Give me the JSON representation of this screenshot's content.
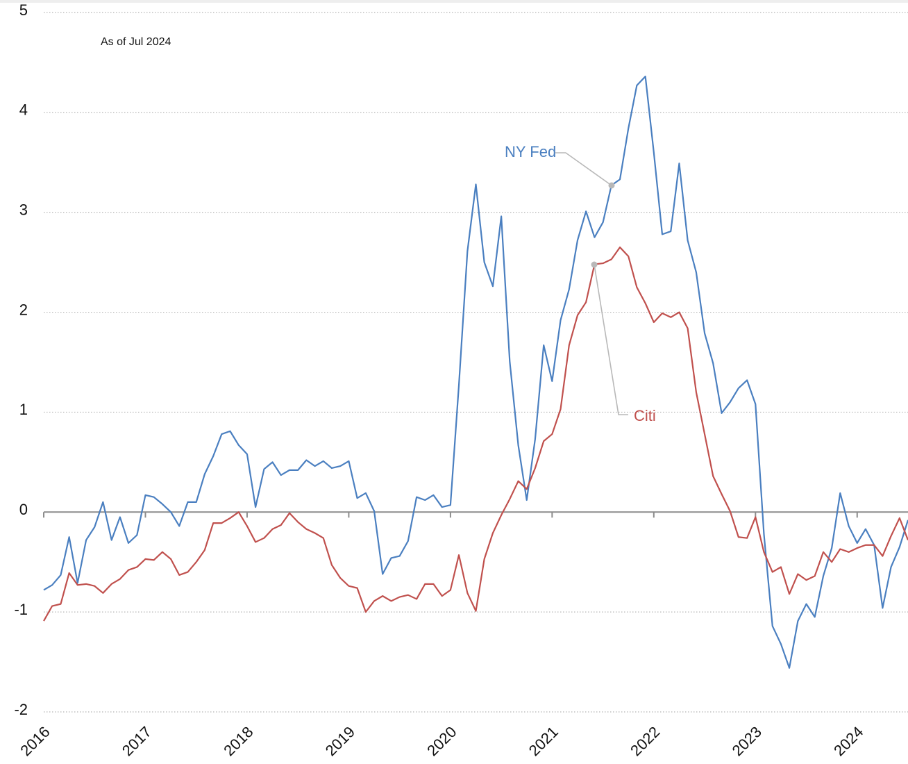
{
  "chart_data": {
    "type": "line",
    "note": "As of Jul 2024",
    "x": [
      2016,
      2016.083,
      2016.167,
      2016.25,
      2016.333,
      2016.417,
      2016.5,
      2016.583,
      2016.667,
      2016.75,
      2016.833,
      2016.917,
      2017,
      2017.083,
      2017.167,
      2017.25,
      2017.333,
      2017.417,
      2017.5,
      2017.583,
      2017.667,
      2017.75,
      2017.833,
      2017.917,
      2018,
      2018.083,
      2018.167,
      2018.25,
      2018.333,
      2018.417,
      2018.5,
      2018.583,
      2018.667,
      2018.75,
      2018.833,
      2018.917,
      2019,
      2019.083,
      2019.167,
      2019.25,
      2019.333,
      2019.417,
      2019.5,
      2019.583,
      2019.667,
      2019.75,
      2019.833,
      2019.917,
      2020,
      2020.083,
      2020.167,
      2020.25,
      2020.333,
      2020.417,
      2020.5,
      2020.583,
      2020.667,
      2020.75,
      2020.833,
      2020.917,
      2021,
      2021.083,
      2021.167,
      2021.25,
      2021.333,
      2021.417,
      2021.5,
      2021.583,
      2021.667,
      2021.75,
      2021.833,
      2021.917,
      2022,
      2022.083,
      2022.167,
      2022.25,
      2022.333,
      2022.417,
      2022.5,
      2022.583,
      2022.667,
      2022.75,
      2022.833,
      2022.917,
      2023,
      2023.083,
      2023.167,
      2023.25,
      2023.333,
      2023.417,
      2023.5,
      2023.583,
      2023.667,
      2023.75,
      2023.833,
      2023.917,
      2024,
      2024.083,
      2024.167,
      2024.25,
      2024.333,
      2024.417,
      2024.5
    ],
    "series": [
      {
        "name": "NY Fed",
        "color": "#4a7fc0",
        "values": [
          -0.78,
          -0.73,
          -0.63,
          -0.25,
          -0.71,
          -0.28,
          -0.15,
          0.1,
          -0.28,
          -0.05,
          -0.31,
          -0.23,
          0.17,
          0.15,
          0.08,
          0.0,
          -0.14,
          0.1,
          0.1,
          0.38,
          0.56,
          0.78,
          0.81,
          0.67,
          0.58,
          0.05,
          0.43,
          0.5,
          0.37,
          0.42,
          0.42,
          0.52,
          0.46,
          0.51,
          0.44,
          0.46,
          0.51,
          0.14,
          0.19,
          0.01,
          -0.62,
          -0.46,
          -0.44,
          -0.29,
          0.15,
          0.12,
          0.17,
          0.05,
          0.07,
          1.27,
          2.61,
          3.28,
          2.5,
          2.26,
          2.96,
          1.51,
          0.67,
          0.12,
          0.73,
          1.67,
          1.31,
          1.92,
          2.23,
          2.72,
          3.01,
          2.75,
          2.9,
          3.27,
          3.33,
          3.84,
          4.27,
          4.36,
          3.6,
          2.78,
          2.81,
          3.49,
          2.72,
          2.4,
          1.79,
          1.49,
          0.99,
          1.1,
          1.24,
          1.32,
          1.08,
          -0.22,
          -1.14,
          -1.32,
          -1.56,
          -1.09,
          -0.92,
          -1.05,
          -0.64,
          -0.36,
          0.19,
          -0.14,
          -0.31,
          -0.17,
          -0.33,
          -0.96,
          -0.55,
          -0.35,
          -0.08
        ]
      },
      {
        "name": "Citi",
        "color": "#c0504d",
        "values": [
          -1.09,
          -0.94,
          -0.92,
          -0.61,
          -0.73,
          -0.72,
          -0.74,
          -0.81,
          -0.72,
          -0.67,
          -0.58,
          -0.55,
          -0.47,
          -0.48,
          -0.4,
          -0.47,
          -0.63,
          -0.6,
          -0.5,
          -0.38,
          -0.11,
          -0.11,
          -0.06,
          0.0,
          -0.14,
          -0.3,
          -0.26,
          -0.17,
          -0.13,
          -0.01,
          -0.1,
          -0.17,
          -0.21,
          -0.26,
          -0.53,
          -0.66,
          -0.74,
          -0.76,
          -1.0,
          -0.89,
          -0.84,
          -0.89,
          -0.85,
          -0.83,
          -0.87,
          -0.72,
          -0.72,
          -0.84,
          -0.78,
          -0.43,
          -0.81,
          -0.99,
          -0.47,
          -0.21,
          -0.03,
          0.13,
          0.31,
          0.23,
          0.44,
          0.71,
          0.78,
          1.03,
          1.67,
          1.97,
          2.1,
          2.48,
          2.49,
          2.53,
          2.65,
          2.56,
          2.25,
          2.09,
          1.9,
          1.99,
          1.95,
          2.0,
          1.84,
          1.2,
          0.78,
          0.36,
          0.18,
          0.01,
          -0.25,
          -0.26,
          -0.05,
          -0.4,
          -0.6,
          -0.55,
          -0.82,
          -0.62,
          -0.68,
          -0.64,
          -0.4,
          -0.5,
          -0.37,
          -0.4,
          -0.36,
          -0.33,
          -0.33,
          -0.44,
          -0.24,
          -0.06,
          -0.28
        ]
      }
    ],
    "xlim": [
      2016,
      2024.5
    ],
    "xticks": [
      2016,
      2017,
      2018,
      2019,
      2020,
      2021,
      2022,
      2023,
      2024
    ],
    "ylim": [
      -2,
      5
    ],
    "yticks": [
      -2,
      -1,
      0,
      1,
      2,
      3,
      4,
      5
    ],
    "grid": true
  }
}
